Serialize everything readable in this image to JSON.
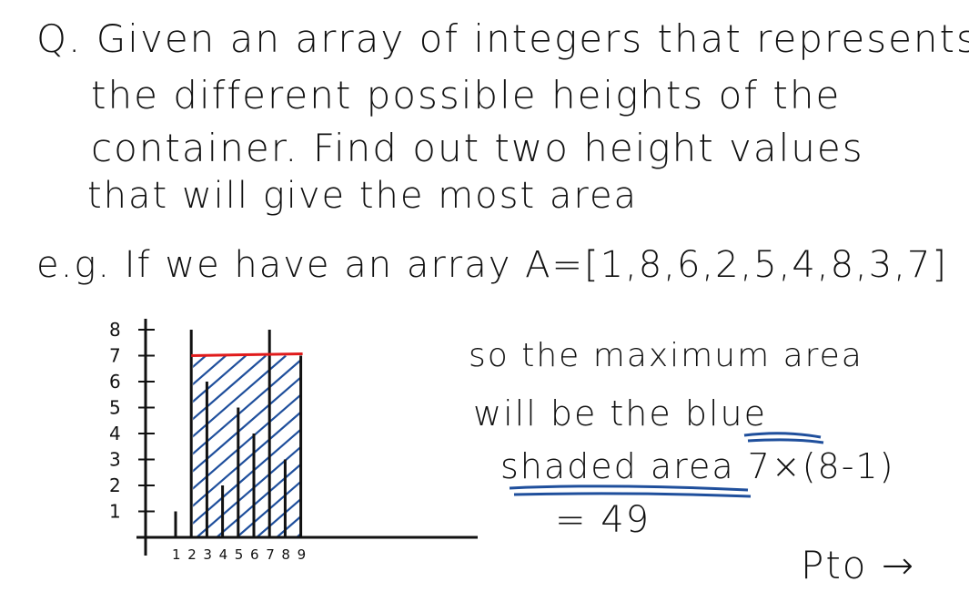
{
  "question": {
    "line1": "Q. Given an array of integers that represents",
    "line2": "the different possible heights of the",
    "line3": "container. Find out two height values",
    "line4": "that will give the most area"
  },
  "example": {
    "line": "e.g. If we have an array A=[1,8,6,2,5,4,8,3,7]"
  },
  "chart_data": {
    "type": "bar",
    "categories": [
      "1",
      "2",
      "3",
      "4",
      "5",
      "6",
      "7",
      "8",
      "9"
    ],
    "values": [
      1,
      8,
      6,
      2,
      5,
      4,
      8,
      3,
      7
    ],
    "ylim": [
      0,
      8
    ],
    "ytick_labels": [
      "1",
      "2",
      "3",
      "4",
      "5",
      "6",
      "7",
      "8"
    ],
    "shaded_region": {
      "from": 2,
      "to": 9,
      "height": 7,
      "color": "#1f4f9c"
    },
    "accent_line_color": "#e01b1b"
  },
  "solution": {
    "line1": "so the maximum area",
    "line2": "will be the blue",
    "line3": "shaded area 7×(8-1)",
    "line4": "= 49",
    "underline_color": "#1f4f9c"
  },
  "footer": {
    "pto": "Pto →"
  }
}
